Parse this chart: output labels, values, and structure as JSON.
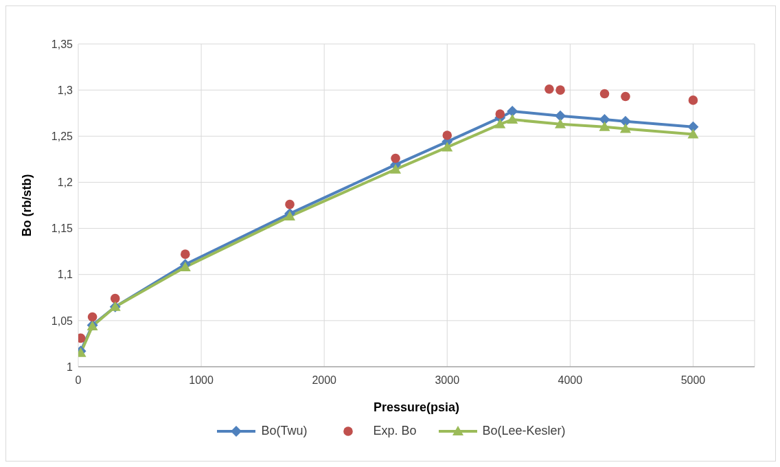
{
  "chart_data": {
    "type": "line",
    "xlabel": "Pressure(psia)",
    "ylabel": "Bo (rb/stb)",
    "xlim": [
      0,
      5500
    ],
    "xticks": [
      0,
      1000,
      2000,
      3000,
      4000,
      5000
    ],
    "ylim": [
      1,
      1.35
    ],
    "yticks": [
      {
        "value": 1,
        "label": "1"
      },
      {
        "value": 1.05,
        "label": "1,05"
      },
      {
        "value": 1.1,
        "label": "1,1"
      },
      {
        "value": 1.15,
        "label": "1,15"
      },
      {
        "value": 1.2,
        "label": "1,2"
      },
      {
        "value": 1.25,
        "label": "1,25"
      },
      {
        "value": 1.3,
        "label": "1,3"
      },
      {
        "value": 1.35,
        "label": "1,35"
      }
    ],
    "grid": true,
    "legend": "bottom",
    "series": [
      {
        "name": "Bo(Twu)",
        "marker": "diamond",
        "color": "#4f81bd",
        "x": [
          20,
          115,
          300,
          870,
          1720,
          2580,
          3000,
          3430,
          3530,
          3920,
          4280,
          4450,
          5000
        ],
        "values": [
          1.017,
          1.045,
          1.065,
          1.111,
          1.166,
          1.219,
          1.244,
          1.27,
          1.277,
          1.272,
          1.268,
          1.266,
          1.26
        ]
      },
      {
        "name": "Exp. Bo",
        "type": "scatter",
        "marker": "circle",
        "color": "#c0504d",
        "x": [
          20,
          115,
          300,
          870,
          1720,
          2580,
          3000,
          3430,
          3830,
          3920,
          4280,
          4450,
          5000
        ],
        "values": [
          1.031,
          1.054,
          1.074,
          1.122,
          1.176,
          1.226,
          1.251,
          1.274,
          1.301,
          1.3,
          1.296,
          1.293,
          1.289
        ]
      },
      {
        "name": "Bo(Lee-Kesler)",
        "marker": "triangle",
        "color": "#9bbb59",
        "x": [
          20,
          115,
          300,
          870,
          1720,
          2580,
          3000,
          3430,
          3530,
          3920,
          4280,
          4450,
          5000
        ],
        "values": [
          1.015,
          1.044,
          1.065,
          1.108,
          1.163,
          1.214,
          1.238,
          1.263,
          1.268,
          1.263,
          1.26,
          1.258,
          1.252
        ]
      }
    ]
  }
}
